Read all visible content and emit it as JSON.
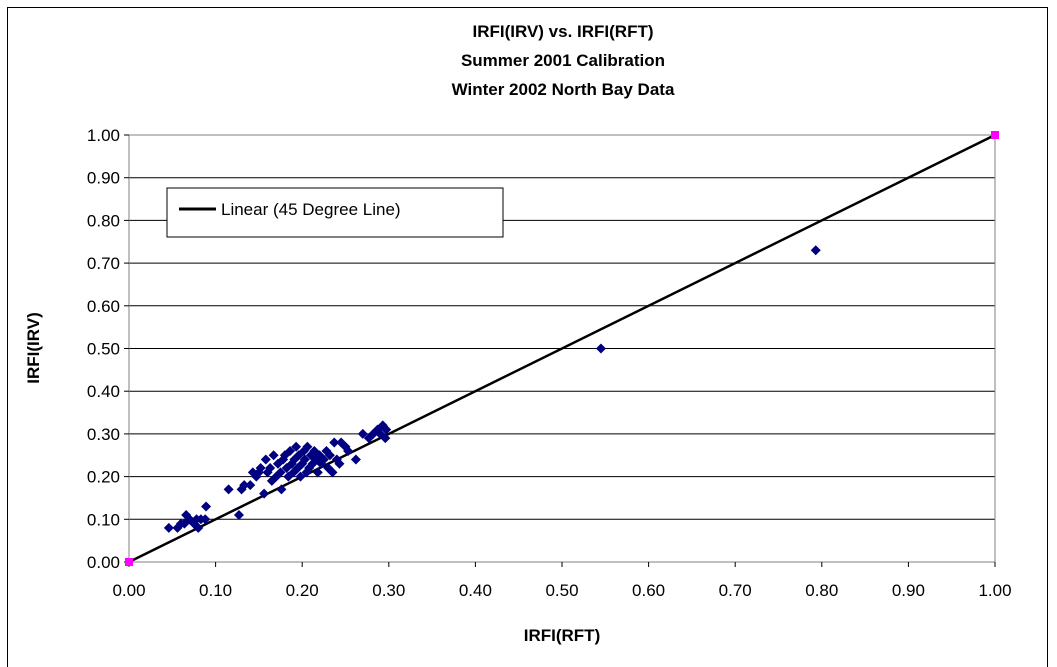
{
  "chart_data": {
    "type": "scatter",
    "title": [
      "IRFI(IRV) vs. IRFI(RFT)",
      "Summer 2001 Calibration",
      "Winter 2002 North Bay Data"
    ],
    "xlabel": "IRFI(RFT)",
    "ylabel": "IRFI(IRV)",
    "xlim": [
      0,
      1
    ],
    "ylim": [
      0,
      1
    ],
    "x_ticks": [
      "0.00",
      "0.10",
      "0.20",
      "0.30",
      "0.40",
      "0.50",
      "0.60",
      "0.70",
      "0.80",
      "0.90",
      "1.00"
    ],
    "y_ticks": [
      "0.00",
      "0.10",
      "0.20",
      "0.30",
      "0.40",
      "0.50",
      "0.60",
      "0.70",
      "0.80",
      "0.90",
      "1.00"
    ],
    "grid": "horizontal",
    "legend": {
      "placement": "upper-left",
      "entries": [
        "Linear (45 Degree Line)"
      ]
    },
    "series": [
      {
        "marker": "diamond",
        "color": "#000080",
        "points": [
          [
            0.046,
            0.08
          ],
          [
            0.056,
            0.08
          ],
          [
            0.06,
            0.09
          ],
          [
            0.064,
            0.09
          ],
          [
            0.066,
            0.11
          ],
          [
            0.07,
            0.1
          ],
          [
            0.075,
            0.09
          ],
          [
            0.078,
            0.1
          ],
          [
            0.08,
            0.08
          ],
          [
            0.083,
            0.1
          ],
          [
            0.088,
            0.1
          ],
          [
            0.089,
            0.13
          ],
          [
            0.115,
            0.17
          ],
          [
            0.127,
            0.11
          ],
          [
            0.13,
            0.17
          ],
          [
            0.133,
            0.18
          ],
          [
            0.14,
            0.18
          ],
          [
            0.143,
            0.21
          ],
          [
            0.147,
            0.2
          ],
          [
            0.15,
            0.21
          ],
          [
            0.152,
            0.22
          ],
          [
            0.156,
            0.16
          ],
          [
            0.158,
            0.24
          ],
          [
            0.16,
            0.21
          ],
          [
            0.163,
            0.22
          ],
          [
            0.165,
            0.19
          ],
          [
            0.167,
            0.25
          ],
          [
            0.17,
            0.2
          ],
          [
            0.172,
            0.23
          ],
          [
            0.175,
            0.21
          ],
          [
            0.176,
            0.17
          ],
          [
            0.178,
            0.24
          ],
          [
            0.18,
            0.25
          ],
          [
            0.182,
            0.22
          ],
          [
            0.184,
            0.2
          ],
          [
            0.186,
            0.26
          ],
          [
            0.188,
            0.23
          ],
          [
            0.19,
            0.21
          ],
          [
            0.191,
            0.24
          ],
          [
            0.193,
            0.27
          ],
          [
            0.195,
            0.22
          ],
          [
            0.196,
            0.25
          ],
          [
            0.198,
            0.2
          ],
          [
            0.2,
            0.23
          ],
          [
            0.202,
            0.26
          ],
          [
            0.203,
            0.24
          ],
          [
            0.205,
            0.21
          ],
          [
            0.206,
            0.27
          ],
          [
            0.208,
            0.22
          ],
          [
            0.21,
            0.25
          ],
          [
            0.212,
            0.23
          ],
          [
            0.214,
            0.26
          ],
          [
            0.216,
            0.24
          ],
          [
            0.218,
            0.21
          ],
          [
            0.22,
            0.25
          ],
          [
            0.222,
            0.23
          ],
          [
            0.225,
            0.24
          ],
          [
            0.228,
            0.26
          ],
          [
            0.23,
            0.22
          ],
          [
            0.232,
            0.25
          ],
          [
            0.235,
            0.21
          ],
          [
            0.237,
            0.28
          ],
          [
            0.24,
            0.24
          ],
          [
            0.243,
            0.23
          ],
          [
            0.245,
            0.28
          ],
          [
            0.25,
            0.27
          ],
          [
            0.253,
            0.26
          ],
          [
            0.262,
            0.24
          ],
          [
            0.27,
            0.3
          ],
          [
            0.277,
            0.29
          ],
          [
            0.282,
            0.3
          ],
          [
            0.287,
            0.31
          ],
          [
            0.29,
            0.3
          ],
          [
            0.293,
            0.32
          ],
          [
            0.296,
            0.29
          ],
          [
            0.297,
            0.31
          ],
          [
            0.545,
            0.5
          ],
          [
            0.793,
            0.73
          ]
        ]
      },
      {
        "marker": "square",
        "color": "#FF00FF",
        "points": [
          [
            0.0,
            0.0
          ],
          [
            1.0,
            1.0
          ]
        ]
      },
      {
        "type": "line",
        "name": "Linear (45 Degree Line)",
        "color": "#000000",
        "points": [
          [
            0.0,
            0.0
          ],
          [
            1.0,
            1.0
          ]
        ]
      }
    ]
  }
}
